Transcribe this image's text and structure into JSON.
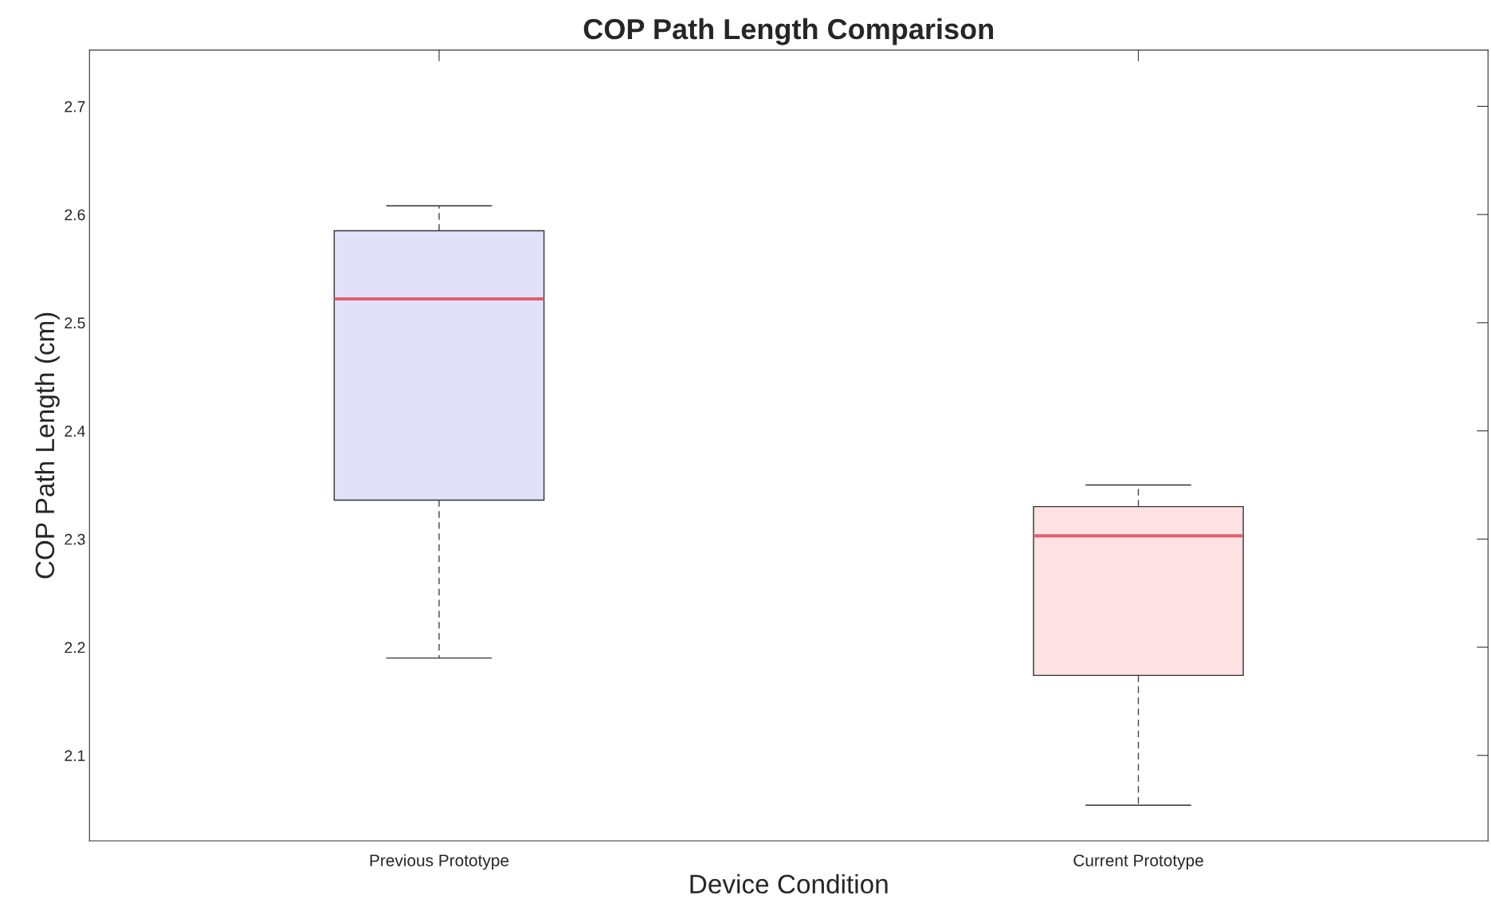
{
  "chart_data": {
    "type": "box",
    "title": "COP Path Length Comparison",
    "xlabel": "Device Condition",
    "ylabel": "COP Path Length (cm)",
    "categories": [
      "Previous Prototype",
      "Current Prototype"
    ],
    "colors": [
      "#e1e1fa",
      "#fde1e3"
    ],
    "boxes": [
      {
        "low": 2.19,
        "q1": 2.336,
        "median": 2.522,
        "q3": 2.585,
        "high": 2.608
      },
      {
        "low": 2.054,
        "q1": 2.174,
        "median": 2.303,
        "q3": 2.33,
        "high": 2.35
      }
    ],
    "ylim": [
      2.021,
      2.752
    ],
    "yticks": [
      2.1,
      2.2,
      2.3,
      2.4,
      2.5,
      2.6,
      2.7
    ],
    "grid": false
  }
}
